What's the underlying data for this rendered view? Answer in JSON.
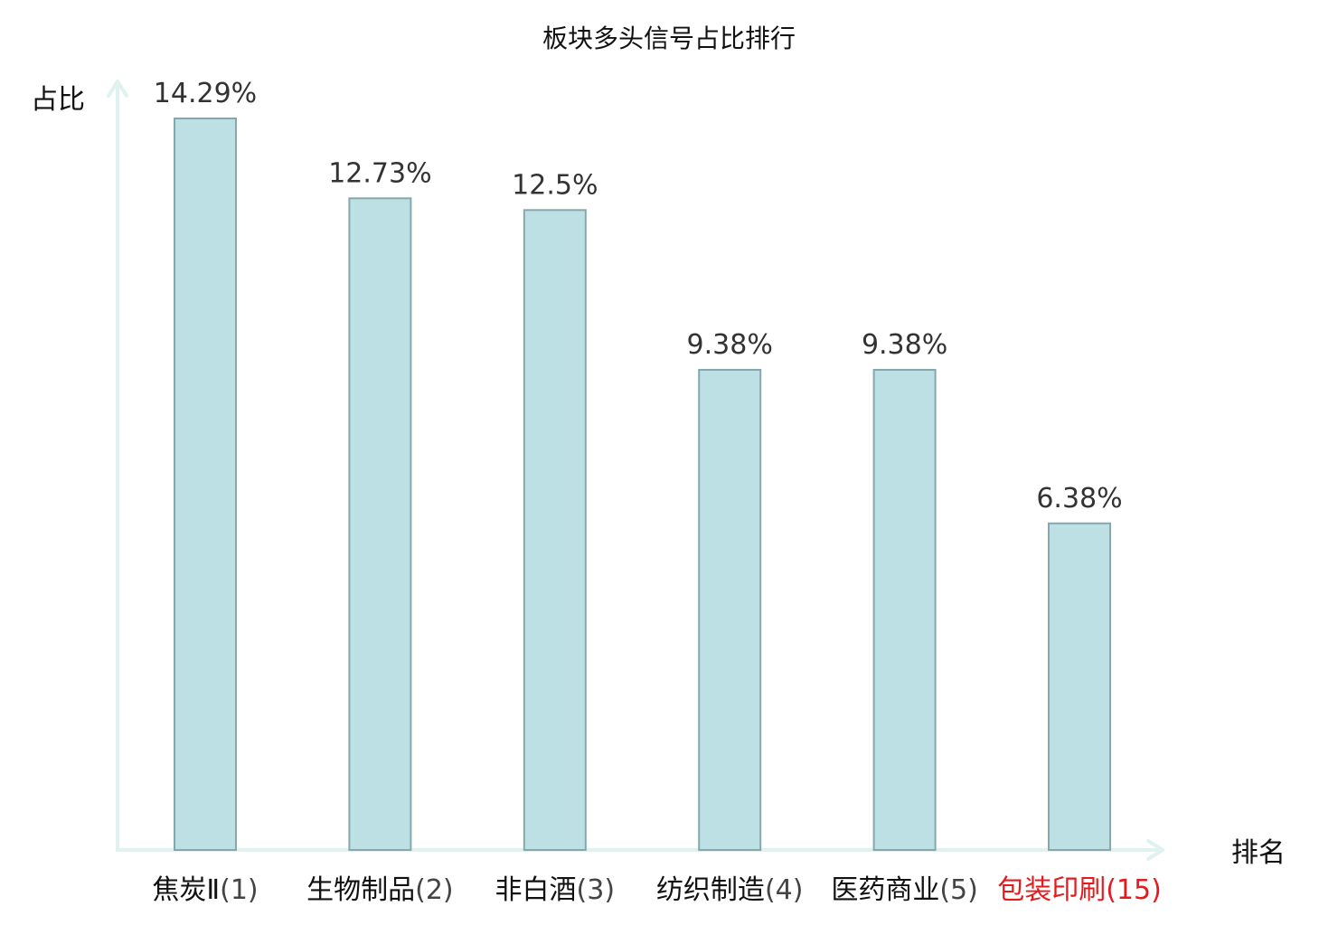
{
  "chart_data": {
    "type": "bar",
    "title": "板块多头信号占比排行",
    "xlabel": "排名",
    "ylabel": "占比",
    "categories": [
      "焦炭Ⅱ(1)",
      "生物制品(2)",
      "非白酒(3)",
      "纺织制造(4)",
      "医药商业(5)",
      "包装印刷(15)"
    ],
    "values": [
      14.29,
      12.73,
      12.5,
      9.38,
      9.38,
      6.38
    ],
    "value_labels": [
      "14.29%",
      "12.73%",
      "12.5%",
      "9.38%",
      "9.38%",
      "6.38%"
    ],
    "category_name_parts": [
      "焦炭Ⅱ",
      "生物制品",
      "非白酒",
      "纺织制造",
      "医药商业",
      "包装印刷"
    ],
    "category_rank_parts": [
      "(1)",
      "(2)",
      "(3)",
      "(4)",
      "(5)",
      "(15)"
    ],
    "highlight_index": 5,
    "ylim": [
      0,
      14.29
    ],
    "grid": false,
    "legend": "none"
  },
  "colors": {
    "bar_fill": "#bce0e3",
    "bar_stroke": "#86a8ac",
    "axis": "#e0f2f0",
    "text": "#111111",
    "value_text": "#333333",
    "rank_text": "#444444",
    "highlight": "#e41a1c"
  }
}
